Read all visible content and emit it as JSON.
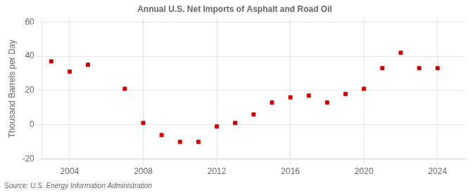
{
  "chart_data": {
    "type": "scatter",
    "title": "Annual U.S. Net Imports of Asphalt and Road Oil",
    "ylabel": "Thousand Barrels per Day",
    "annotation": "Source: U.S. Energy Information Administration",
    "x": [
      2003,
      2004,
      2005,
      2007,
      2008,
      2009,
      2010,
      2011,
      2012,
      2013,
      2014,
      2015,
      2016,
      2017,
      2018,
      2019,
      2020,
      2021,
      2022,
      2023,
      2024
    ],
    "values": [
      37,
      31,
      35,
      21,
      1,
      -6,
      -10,
      -10,
      -1,
      1,
      6,
      13,
      16,
      17,
      13,
      18,
      21,
      33,
      42,
      33,
      33
    ],
    "color": "#cc0000",
    "marker": "square",
    "xlim": [
      2002.5,
      2025.5
    ],
    "ylim": [
      -20,
      62
    ],
    "xticks": [
      2004,
      2008,
      2012,
      2016,
      2020,
      2024
    ],
    "yticks": [
      -20,
      0,
      20,
      40,
      60
    ],
    "grid": true
  }
}
